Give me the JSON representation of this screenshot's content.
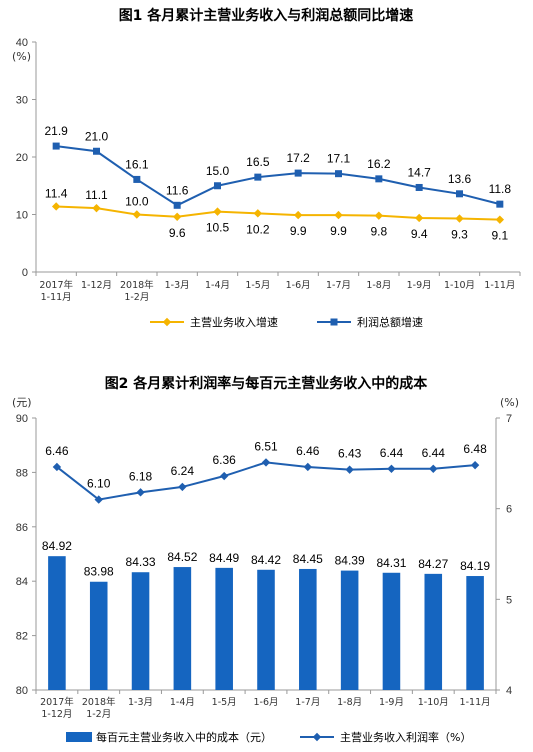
{
  "colors": {
    "orange": "#F5B400",
    "blue": "#1F5FB0",
    "bar": "#1565C0",
    "axis": "#999999"
  },
  "chart_data": [
    {
      "type": "line",
      "title": "图1  各月累计主营业务收入与利润总额同比增速",
      "y_unit": "(%)",
      "ylim": [
        0,
        40
      ],
      "yticks": [
        "0",
        "10",
        "20",
        "30",
        "40"
      ],
      "categories": [
        "2017年\n1-11月",
        "1-12月",
        "2018年\n1-2月",
        "1-3月",
        "1-4月",
        "1-5月",
        "1-6月",
        "1-7月",
        "1-8月",
        "1-9月",
        "1-10月",
        "1-11月"
      ],
      "series": [
        {
          "name": "主营业务收入增速",
          "color": "#F5B400",
          "values": [
            11.4,
            11.1,
            10.0,
            9.6,
            10.5,
            10.2,
            9.9,
            9.9,
            9.8,
            9.4,
            9.3,
            9.1
          ]
        },
        {
          "name": "利润总额增速",
          "color": "#1F5FB0",
          "values": [
            21.9,
            21.0,
            16.1,
            11.6,
            15.0,
            16.5,
            17.2,
            17.1,
            16.2,
            14.7,
            13.6,
            11.8
          ]
        }
      ],
      "legend": "bottom",
      "grid": false
    },
    {
      "type": "bar+line",
      "title": "图2  各月累计利润率与每百元主营业务收入中的成本",
      "y_unit_left": "(元)",
      "y_unit_right": "(%)",
      "ylim_left": [
        80,
        90
      ],
      "yticks_left": [
        "80",
        "82",
        "84",
        "86",
        "88",
        "90"
      ],
      "ylim_right": [
        4,
        7
      ],
      "yticks_right": [
        "4",
        "5",
        "6",
        "7"
      ],
      "categories": [
        "2017年\n1-12月",
        "2018年\n1-2月",
        "1-3月",
        "1-4月",
        "1-5月",
        "1-6月",
        "1-7月",
        "1-8月",
        "1-9月",
        "1-10月",
        "1-11月"
      ],
      "bars": {
        "name": "每百元主营业务收入中的成本（元）",
        "color": "#1565C0",
        "values": [
          84.92,
          83.98,
          84.33,
          84.52,
          84.49,
          84.42,
          84.45,
          84.39,
          84.31,
          84.27,
          84.19
        ]
      },
      "line": {
        "name": "主营业务收入利润率（%）",
        "color": "#1F5FB0",
        "values": [
          6.46,
          6.1,
          6.18,
          6.24,
          6.36,
          6.51,
          6.46,
          6.43,
          6.44,
          6.44,
          6.48
        ]
      },
      "legend": "bottom",
      "grid": false
    }
  ]
}
